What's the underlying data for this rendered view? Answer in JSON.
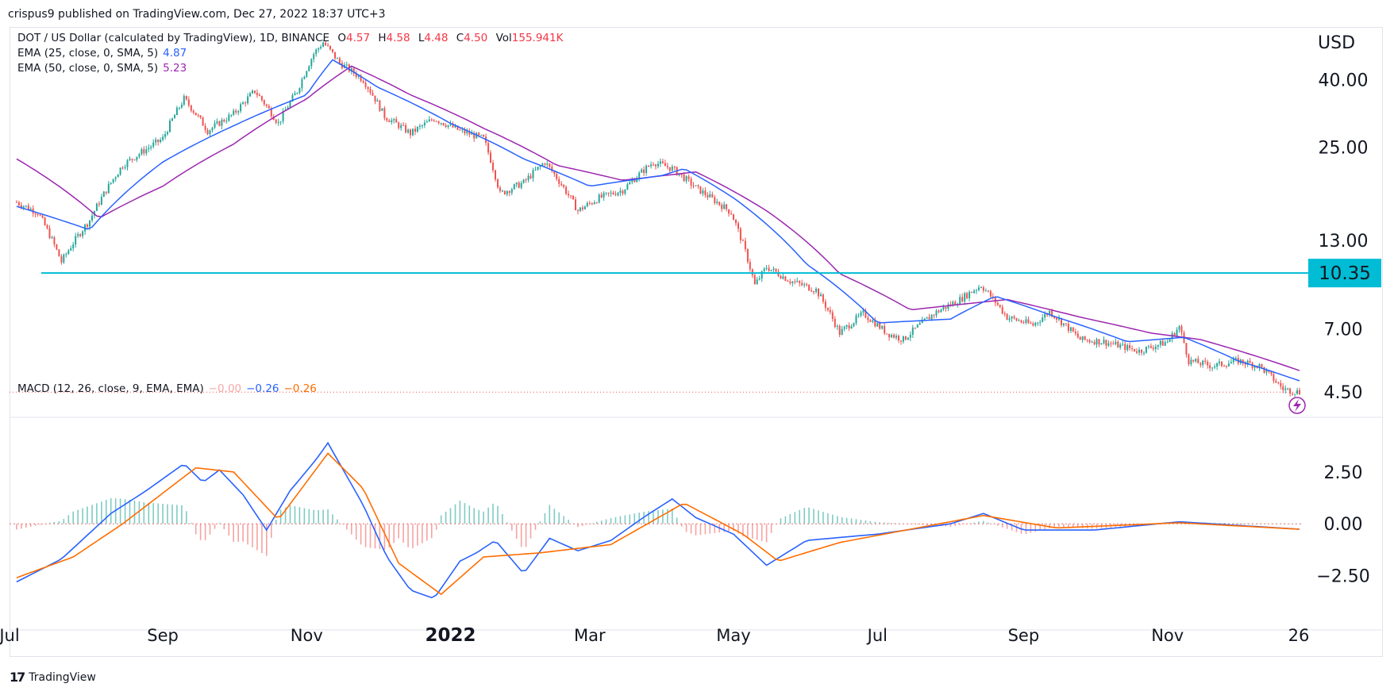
{
  "publisher": "crispus9 published on TradingView.com, Dec 27, 2022 18:37 UTC+3",
  "footer_brand": "TradingView",
  "currency_label": "USD",
  "legend": {
    "main": "DOT / US Dollar (calculated by TradingView), 1D, BINANCE",
    "o_label": "O",
    "o": "4.57",
    "h_label": "H",
    "h": "4.58",
    "l_label": "L",
    "l": "4.48",
    "c_label": "C",
    "c": "4.50",
    "vol_label": "Vol",
    "vol": "155.941K",
    "ema25_label": "EMA (25, close, 0, SMA, 5)",
    "ema25_value": "4.87",
    "ema50_label": "EMA (50, close, 0, SMA, 5)",
    "ema50_value": "5.23",
    "macd_label": "MACD (12, 26, close, 9, EMA, EMA)",
    "macd_hist_value": "−0.00",
    "macd_value": "−0.26",
    "macd_signal_value": "−0.26"
  },
  "colors": {
    "up": "#26a69a",
    "down": "#ef5350",
    "ema25": "#2962ff",
    "ema50": "#9c27b0",
    "macd": "#2962ff",
    "signal": "#ff6d00",
    "support": "#00bcd4",
    "last_price_line": "#ef5350"
  },
  "chart_data": {
    "type": "candlestick",
    "symbol": "DOTUSD",
    "timeframe": "1D",
    "price_axis": {
      "ticks": [
        "40.00",
        "25.00",
        "13.00",
        "7.00",
        "4.50"
      ],
      "scale": "log"
    },
    "time_axis": {
      "labels": [
        "Jul",
        "Sep",
        "Nov",
        "2022",
        "Mar",
        "May",
        "Jul",
        "Sep",
        "Nov",
        "26"
      ]
    },
    "support_level": {
      "value": 10.35,
      "label": "10.35"
    },
    "last_price": 4.5,
    "price_path": [
      [
        "2021-07-01",
        17.0
      ],
      [
        "2021-07-10",
        15.8
      ],
      [
        "2021-07-20",
        11.2
      ],
      [
        "2021-08-01",
        15.0
      ],
      [
        "2021-08-15",
        22.0
      ],
      [
        "2021-09-01",
        26.5
      ],
      [
        "2021-09-10",
        35.0
      ],
      [
        "2021-09-20",
        28.0
      ],
      [
        "2021-10-01",
        31.5
      ],
      [
        "2021-10-10",
        37.0
      ],
      [
        "2021-10-20",
        29.5
      ],
      [
        "2021-10-28",
        37.0
      ],
      [
        "2021-11-04",
        48.0
      ],
      [
        "2021-11-08",
        52.0
      ],
      [
        "2021-11-15",
        45.0
      ],
      [
        "2021-11-25",
        40.0
      ],
      [
        "2021-12-04",
        31.0
      ],
      [
        "2021-12-15",
        27.5
      ],
      [
        "2021-12-25",
        30.5
      ],
      [
        "2022-01-05",
        28.0
      ],
      [
        "2022-01-15",
        26.5
      ],
      [
        "2022-01-22",
        18.0
      ],
      [
        "2022-02-01",
        19.5
      ],
      [
        "2022-02-10",
        22.5
      ],
      [
        "2022-02-24",
        16.0
      ],
      [
        "2022-03-05",
        17.5
      ],
      [
        "2022-03-15",
        18.5
      ],
      [
        "2022-03-28",
        22.5
      ],
      [
        "2022-04-05",
        21.5
      ],
      [
        "2022-04-15",
        18.8
      ],
      [
        "2022-04-30",
        15.8
      ],
      [
        "2022-05-10",
        9.5
      ],
      [
        "2022-05-15",
        10.8
      ],
      [
        "2022-05-25",
        9.8
      ],
      [
        "2022-06-05",
        9.2
      ],
      [
        "2022-06-15",
        6.8
      ],
      [
        "2022-06-25",
        7.8
      ],
      [
        "2022-07-05",
        6.8
      ],
      [
        "2022-07-12",
        6.5
      ],
      [
        "2022-07-25",
        7.8
      ],
      [
        "2022-08-05",
        8.6
      ],
      [
        "2022-08-14",
        9.5
      ],
      [
        "2022-08-25",
        7.6
      ],
      [
        "2022-09-05",
        7.2
      ],
      [
        "2022-09-12",
        7.9
      ],
      [
        "2022-09-25",
        6.5
      ],
      [
        "2022-10-05",
        6.4
      ],
      [
        "2022-10-20",
        6.0
      ],
      [
        "2022-11-01",
        6.4
      ],
      [
        "2022-11-06",
        7.1
      ],
      [
        "2022-11-10",
        5.6
      ],
      [
        "2022-11-20",
        5.4
      ],
      [
        "2022-12-01",
        5.6
      ],
      [
        "2022-12-10",
        5.4
      ],
      [
        "2022-12-20",
        4.6
      ],
      [
        "2022-12-27",
        4.5
      ]
    ],
    "ema25_path": [
      [
        "2021-07-01",
        16.5
      ],
      [
        "2021-08-01",
        14.0
      ],
      [
        "2021-09-01",
        22.5
      ],
      [
        "2021-10-01",
        29.0
      ],
      [
        "2021-11-01",
        36.0
      ],
      [
        "2021-11-12",
        46.0
      ],
      [
        "2021-12-01",
        38.0
      ],
      [
        "2022-01-01",
        29.5
      ],
      [
        "2022-02-01",
        23.0
      ],
      [
        "2022-03-01",
        19.0
      ],
      [
        "2022-04-01",
        20.5
      ],
      [
        "2022-04-10",
        21.5
      ],
      [
        "2022-05-01",
        17.5
      ],
      [
        "2022-06-01",
        11.0
      ],
      [
        "2022-07-01",
        7.3
      ],
      [
        "2022-08-01",
        7.5
      ],
      [
        "2022-08-20",
        8.8
      ],
      [
        "2022-09-15",
        7.6
      ],
      [
        "2022-10-15",
        6.4
      ],
      [
        "2022-11-08",
        6.6
      ],
      [
        "2022-12-01",
        5.6
      ],
      [
        "2022-12-27",
        4.87
      ]
    ],
    "ema50_path": [
      [
        "2021-07-01",
        23.0
      ],
      [
        "2021-08-05",
        15.2
      ],
      [
        "2021-09-01",
        19.0
      ],
      [
        "2021-10-01",
        25.5
      ],
      [
        "2021-11-01",
        35.0
      ],
      [
        "2021-11-20",
        44.0
      ],
      [
        "2021-12-15",
        36.0
      ],
      [
        "2022-01-15",
        28.5
      ],
      [
        "2022-02-15",
        22.0
      ],
      [
        "2022-03-15",
        19.8
      ],
      [
        "2022-04-15",
        21.0
      ],
      [
        "2022-05-15",
        16.0
      ],
      [
        "2022-06-15",
        10.3
      ],
      [
        "2022-07-15",
        8.0
      ],
      [
        "2022-08-25",
        8.6
      ],
      [
        "2022-09-25",
        7.6
      ],
      [
        "2022-10-25",
        6.8
      ],
      [
        "2022-11-15",
        6.5
      ],
      [
        "2022-12-27",
        5.23
      ]
    ],
    "macd": {
      "ticks": [
        "2.50",
        "0.00",
        "−2.50"
      ],
      "macd_path": [
        [
          "2021-07-01",
          -2.8
        ],
        [
          "2021-07-20",
          -1.7
        ],
        [
          "2021-08-10",
          0.5
        ],
        [
          "2021-08-25",
          1.6
        ],
        [
          "2021-09-10",
          2.9
        ],
        [
          "2021-09-18",
          2.0
        ],
        [
          "2021-09-25",
          2.6
        ],
        [
          "2021-10-05",
          1.4
        ],
        [
          "2021-10-15",
          -0.3
        ],
        [
          "2021-10-25",
          1.6
        ],
        [
          "2021-11-05",
          3.1
        ],
        [
          "2021-11-10",
          3.9
        ],
        [
          "2021-11-25",
          0.9
        ],
        [
          "2021-12-05",
          -1.6
        ],
        [
          "2021-12-15",
          -3.2
        ],
        [
          "2021-12-25",
          -3.6
        ],
        [
          "2022-01-05",
          -1.8
        ],
        [
          "2022-01-12",
          -1.4
        ],
        [
          "2022-01-20",
          -0.8
        ],
        [
          "2022-02-01",
          -2.4
        ],
        [
          "2022-02-12",
          -0.7
        ],
        [
          "2022-02-24",
          -1.3
        ],
        [
          "2022-03-10",
          -0.8
        ],
        [
          "2022-03-25",
          0.4
        ],
        [
          "2022-04-05",
          1.2
        ],
        [
          "2022-04-15",
          0.3
        ],
        [
          "2022-05-01",
          -0.5
        ],
        [
          "2022-05-15",
          -2.0
        ],
        [
          "2022-06-01",
          -0.8
        ],
        [
          "2022-07-01",
          -0.5
        ],
        [
          "2022-08-01",
          0.0
        ],
        [
          "2022-08-15",
          0.5
        ],
        [
          "2022-09-01",
          -0.3
        ],
        [
          "2022-10-01",
          -0.3
        ],
        [
          "2022-11-06",
          0.1
        ],
        [
          "2022-12-27",
          -0.26
        ]
      ],
      "signal_path": [
        [
          "2021-07-01",
          -2.6
        ],
        [
          "2021-07-25",
          -1.6
        ],
        [
          "2021-08-15",
          0.0
        ],
        [
          "2021-09-15",
          2.7
        ],
        [
          "2021-10-01",
          2.5
        ],
        [
          "2021-10-20",
          0.2
        ],
        [
          "2021-11-10",
          3.4
        ],
        [
          "2021-11-25",
          1.7
        ],
        [
          "2021-12-10",
          -1.9
        ],
        [
          "2021-12-28",
          -3.4
        ],
        [
          "2022-01-15",
          -1.6
        ],
        [
          "2022-02-08",
          -1.4
        ],
        [
          "2022-03-10",
          -1.0
        ],
        [
          "2022-04-10",
          1.0
        ],
        [
          "2022-05-05",
          -0.5
        ],
        [
          "2022-05-20",
          -1.8
        ],
        [
          "2022-06-15",
          -0.9
        ],
        [
          "2022-08-15",
          0.4
        ],
        [
          "2022-09-15",
          -0.2
        ],
        [
          "2022-11-06",
          0.05
        ],
        [
          "2022-12-27",
          -0.26
        ]
      ]
    }
  }
}
